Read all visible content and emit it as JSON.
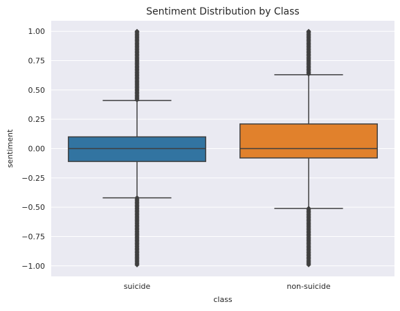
{
  "chart_data": {
    "type": "box",
    "title": "Sentiment Distribution by Class",
    "xlabel": "class",
    "ylabel": "sentiment",
    "ylim": [
      -1.09,
      1.09
    ],
    "yticks": [
      -1.0,
      -0.75,
      -0.5,
      -0.25,
      0.0,
      0.25,
      0.5,
      0.75,
      1.0
    ],
    "ytick_labels": [
      "−1.00",
      "−0.75",
      "−0.50",
      "−0.25",
      "0.00",
      "0.25",
      "0.50",
      "0.75",
      "1.00"
    ],
    "grid": true,
    "categories": [
      "suicide",
      "non-suicide"
    ],
    "boxes": [
      {
        "category": "suicide",
        "q1": -0.11,
        "median": 0.0,
        "q3": 0.1,
        "whisker_low": -0.42,
        "whisker_high": 0.41,
        "outlier_range_low": [
          -1.0,
          -0.42
        ],
        "outlier_range_high": [
          0.41,
          1.0
        ],
        "color": "#3274a1"
      },
      {
        "category": "non-suicide",
        "q1": -0.08,
        "median": 0.0,
        "q3": 0.21,
        "whisker_low": -0.51,
        "whisker_high": 0.63,
        "outlier_range_low": [
          -1.0,
          -0.51
        ],
        "outlier_range_high": [
          0.63,
          1.0
        ],
        "color": "#e1812c"
      }
    ],
    "colors": {
      "background": "#eaeaf2",
      "grid": "#ffffff",
      "line": "#3f3f3f"
    }
  }
}
